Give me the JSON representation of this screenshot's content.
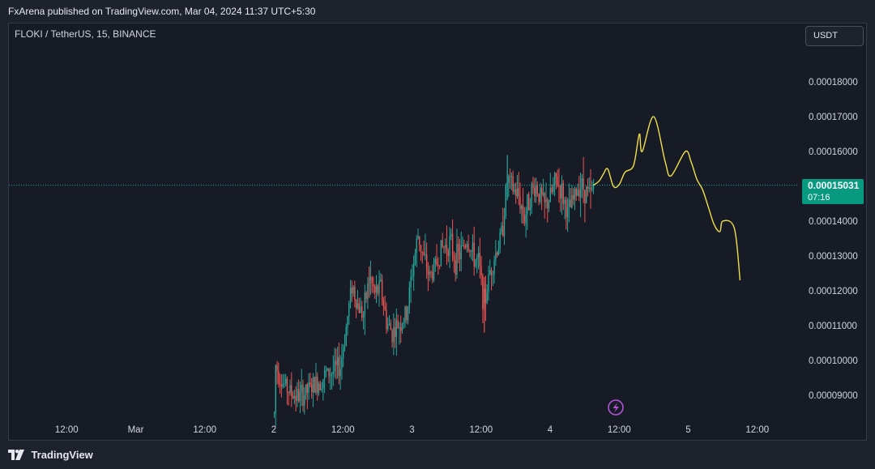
{
  "header": {
    "published_line": "FxArena published on TradingView.com, Mar 04, 2024 11:37 UTC+5:30"
  },
  "chart_header": {
    "symbol_line": "FLOKI / TetherUS, 15, BINANCE",
    "currency_button": "USDT"
  },
  "price_label": {
    "price": "0.00015031",
    "countdown": "07:16"
  },
  "footer": {
    "brand": "TradingView"
  },
  "colors": {
    "up": "#26a69a",
    "down": "#ef5350",
    "projection": "#f0e04a",
    "price_line": "#26a69a",
    "axis_text": "#d1d4dc",
    "event_marker": "#b553d9"
  },
  "chart_data": {
    "type": "candlestick",
    "y_ticks": [
      "0.00018000",
      "0.00017000",
      "0.00016000",
      "0.00015000",
      "0.00014000",
      "0.00013000",
      "0.00012000",
      "0.00011000",
      "0.00010000",
      "0.00009000"
    ],
    "x_ticks": [
      "12:00",
      "Mar",
      "12:00",
      "2",
      "12:00",
      "3",
      "12:00",
      "4",
      "12:00",
      "5",
      "12:00"
    ],
    "ylim": [
      8.45e-05,
      0.0001905
    ],
    "last_price": 0.00015031,
    "price_path": [
      [
        "Mar 2 00:00",
        8.45e-05
      ],
      [
        "Mar 2 00:15",
        9.85e-05
      ],
      [
        "Mar 2 01:30",
        9.35e-05
      ],
      [
        "Mar 2 03:00",
        9.05e-05
      ],
      [
        "Mar 2 04:30",
        8.95e-05
      ],
      [
        "Mar 2 06:00",
        9.15e-05
      ],
      [
        "Mar 2 07:30",
        9.35e-05
      ],
      [
        "Mar 2 09:00",
        9.6e-05
      ],
      [
        "Mar 2 10:30",
        9.7e-05
      ],
      [
        "Mar 2 11:30",
        9.85e-05
      ],
      [
        "Mar 2 12:30",
        0.0001095
      ],
      [
        "Mar 2 13:30",
        0.000122
      ],
      [
        "Mar 2 14:30",
        0.000116
      ],
      [
        "Mar 2 15:30",
        0.000113
      ],
      [
        "Mar 2 16:30",
        0.000124
      ],
      [
        "Mar 2 17:30",
        0.000119
      ],
      [
        "Mar 2 18:30",
        0.000121
      ],
      [
        "Mar 2 19:30",
        0.000111
      ],
      [
        "Mar 2 20:30",
        0.000108
      ],
      [
        "Mar 2 21:30",
        0.00011
      ],
      [
        "Mar 2 23:00",
        0.000113
      ],
      [
        "Mar 3 00:00",
        0.000126
      ],
      [
        "Mar 3 01:00",
        0.000136
      ],
      [
        "Mar 3 02:00",
        0.000129
      ],
      [
        "Mar 3 03:00",
        0.000124
      ],
      [
        "Mar 3 04:00",
        0.000127
      ],
      [
        "Mar 3 05:00",
        0.000132
      ],
      [
        "Mar 3 06:30",
        0.000134
      ],
      [
        "Mar 3 07:30",
        0.000129
      ],
      [
        "Mar 3 08:30",
        0.000131
      ],
      [
        "Mar 3 09:30",
        0.000135
      ],
      [
        "Mar 3 10:30",
        0.00013
      ],
      [
        "Mar 3 11:30",
        0.000128
      ],
      [
        "Mar 3 12:30",
        0.000116
      ],
      [
        "Mar 3 13:30",
        0.000126
      ],
      [
        "Mar 3 14:30",
        0.000131
      ],
      [
        "Mar 3 15:30",
        0.000136
      ],
      [
        "Mar 3 16:30",
        0.000152
      ],
      [
        "Mar 3 17:30",
        0.000149
      ],
      [
        "Mar 3 18:30",
        0.000147
      ],
      [
        "Mar 3 19:30",
        0.000141
      ],
      [
        "Mar 3 20:30",
        0.000148
      ],
      [
        "Mar 3 21:30",
        0.00015
      ],
      [
        "Mar 3 23:00",
        0.000144
      ],
      [
        "Mar 4 00:00",
        0.000147
      ],
      [
        "Mar 4 01:00",
        0.000152
      ],
      [
        "Mar 4 02:00",
        0.000148
      ],
      [
        "Mar 4 03:00",
        0.000142
      ],
      [
        "Mar 4 04:00",
        0.000146
      ],
      [
        "Mar 4 05:00",
        0.000151
      ],
      [
        "Mar 4 06:00",
        0.000149
      ],
      [
        "Mar 4 07:00",
        0.000147
      ],
      [
        "Mar 4 07:30",
        0.00015031
      ]
    ],
    "projection_path": [
      [
        "Mar 4 07:30",
        0.0001503
      ],
      [
        "Mar 4 08:30",
        0.0001515
      ],
      [
        "Mar 4 09:15",
        0.0001535
      ],
      [
        "Mar 4 10:00",
        0.000155
      ],
      [
        "Mar 4 11:00",
        0.00015
      ],
      [
        "Mar 4 12:00",
        0.0001505
      ],
      [
        "Mar 4 13:00",
        0.000154
      ],
      [
        "Mar 4 14:30",
        0.000156
      ],
      [
        "Mar 4 15:30",
        0.000165
      ],
      [
        "Mar 4 16:00",
        0.00016
      ],
      [
        "Mar 4 18:00",
        0.00017
      ],
      [
        "Mar 4 20:00",
        0.000157
      ],
      [
        "Mar 4 21:00",
        0.000153
      ],
      [
        "Mar 4 23:30",
        0.00016
      ],
      [
        "Mar 5 00:30",
        0.000157
      ],
      [
        "Mar 5 01:30",
        0.000152
      ],
      [
        "Mar 5 02:30",
        0.000149
      ],
      [
        "Mar 5 03:30",
        0.000144
      ],
      [
        "Mar 5 04:30",
        0.000139
      ],
      [
        "Mar 5 05:30",
        0.000137
      ],
      [
        "Mar 5 06:00",
        0.00014
      ],
      [
        "Mar 5 08:00",
        0.000138
      ],
      [
        "Mar 5 09:00",
        0.000123
      ]
    ]
  }
}
